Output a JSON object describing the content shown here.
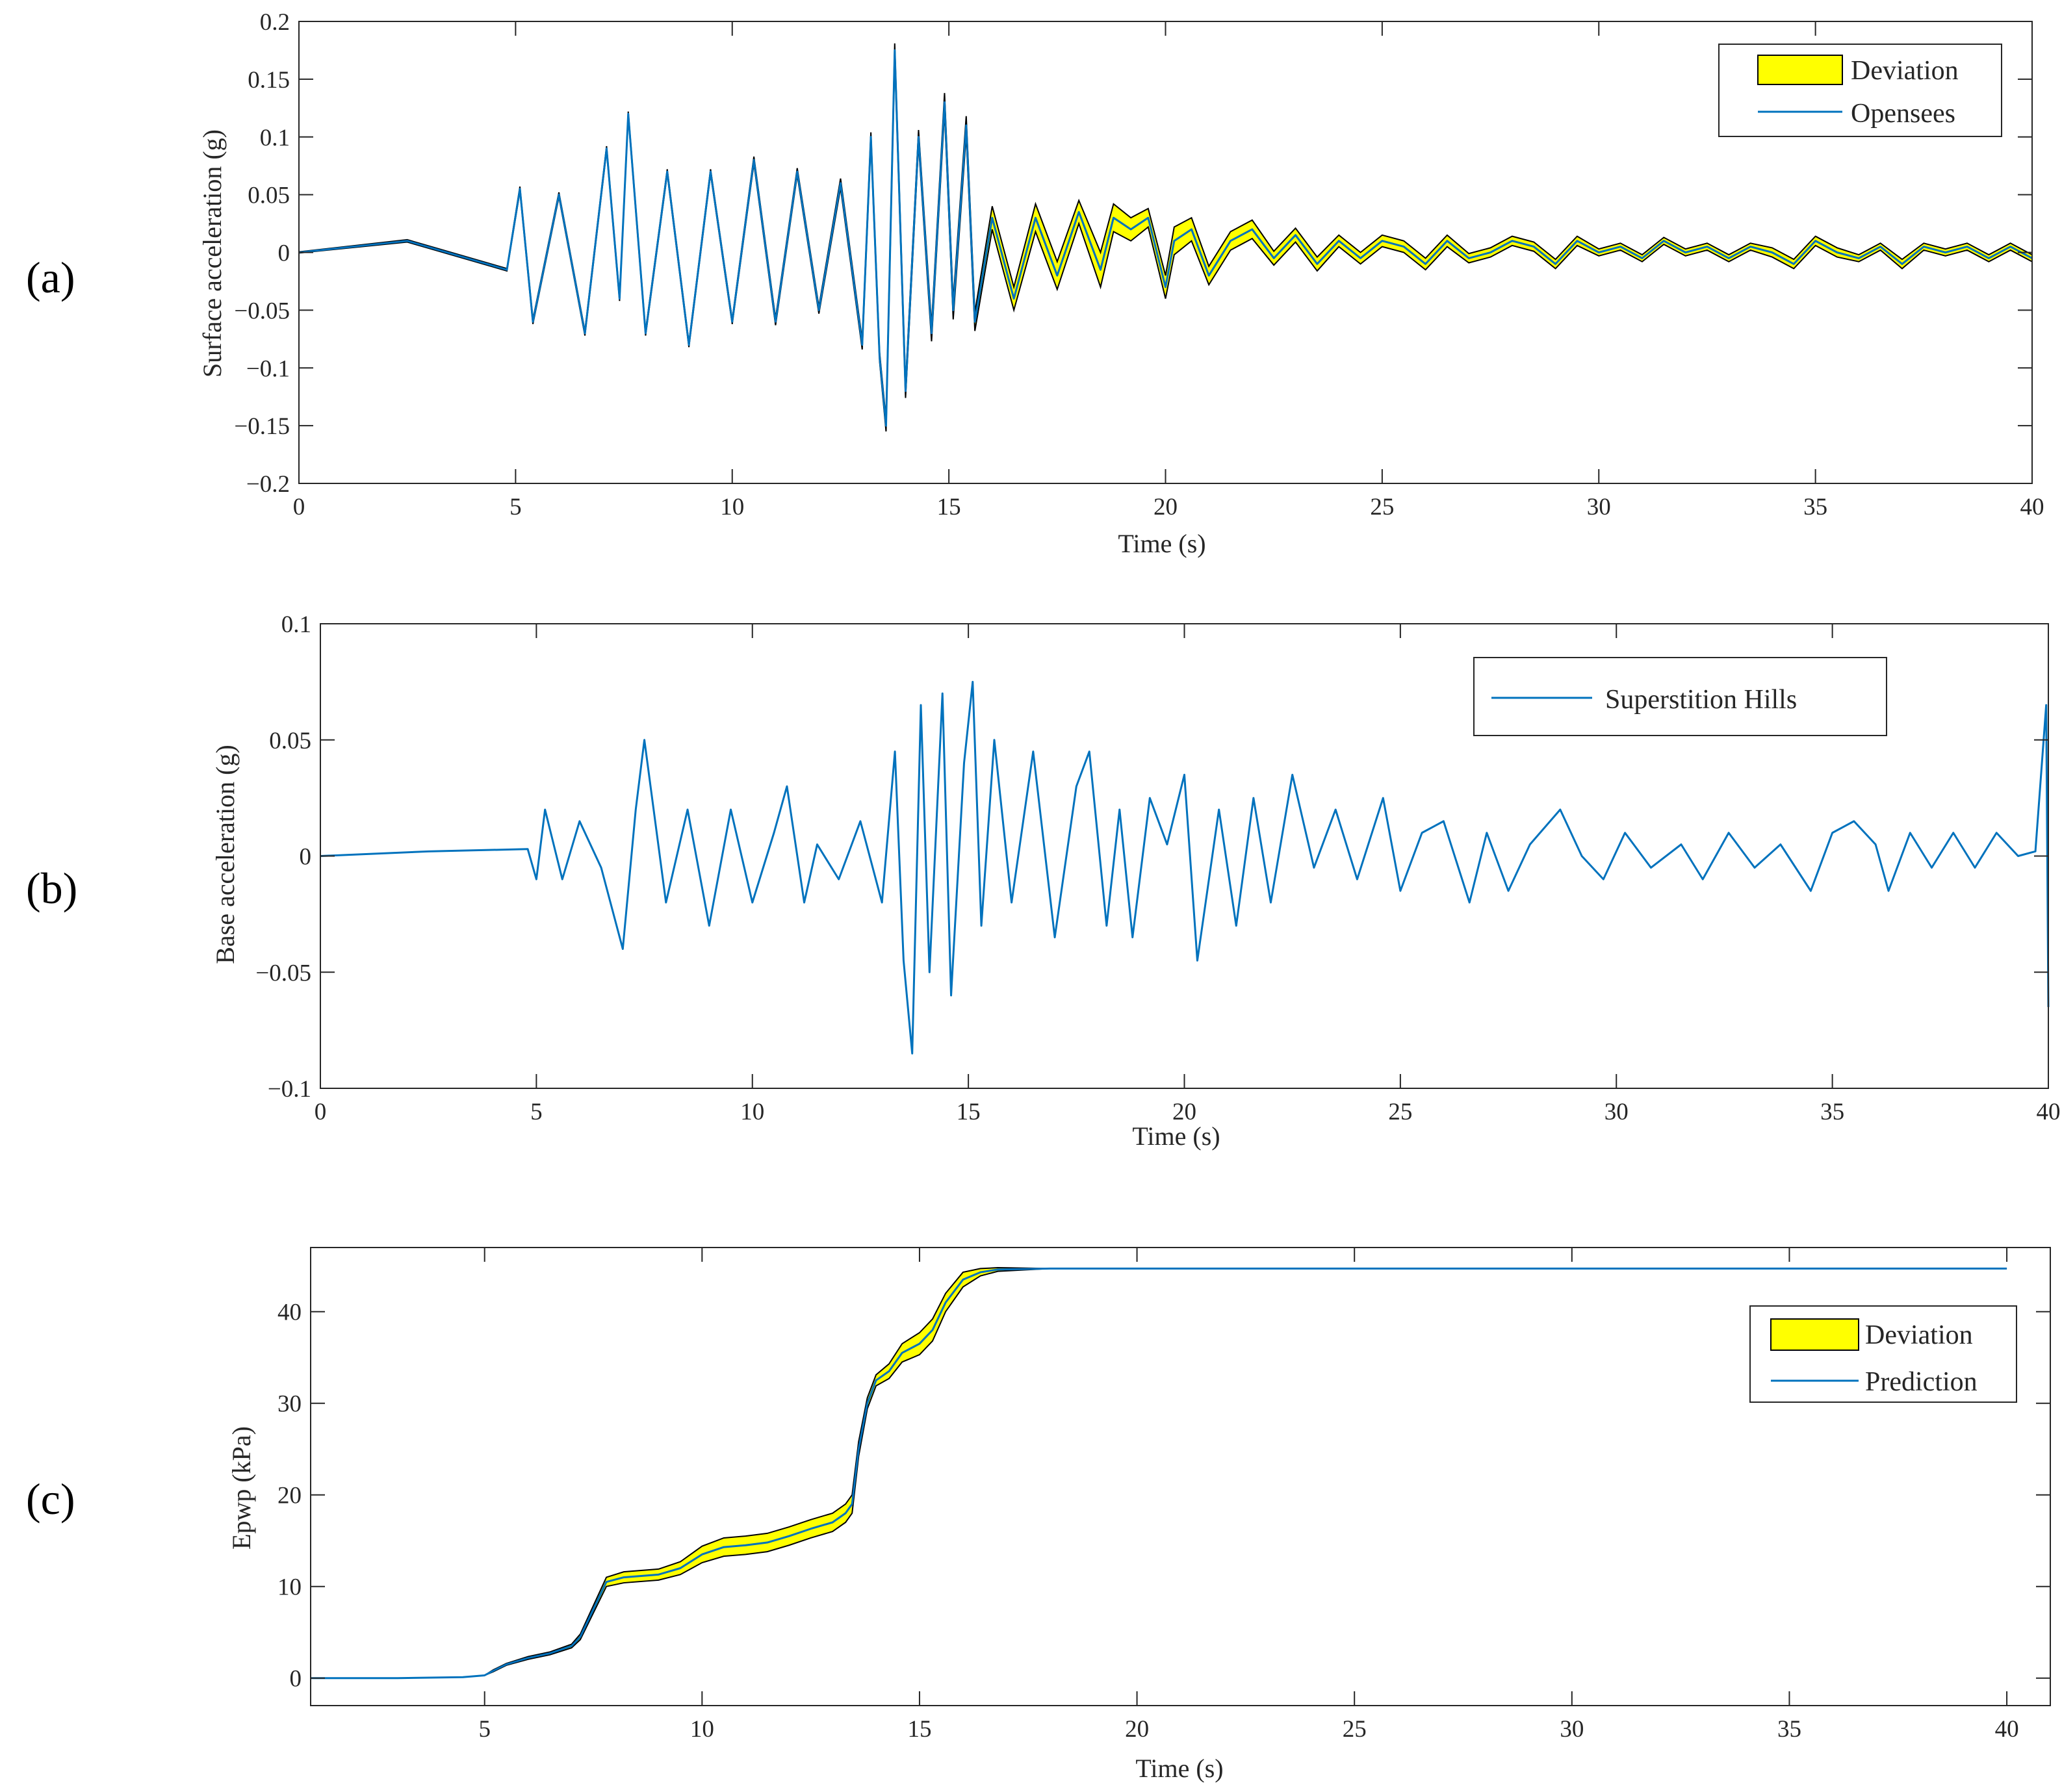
{
  "panels": [
    {
      "tag": "(a)",
      "title": "",
      "xlabel": "Time (s)",
      "ylabel": "Surface acceleration (g)",
      "xlim": [
        0,
        40
      ],
      "ylim": [
        -0.2,
        0.2
      ],
      "xticks": [
        0,
        5,
        10,
        15,
        20,
        25,
        30,
        35,
        40
      ],
      "yticks": [
        -0.2,
        -0.15,
        -0.1,
        -0.05,
        0,
        0.05,
        0.1,
        0.15,
        0.2
      ],
      "xtick_labels": [
        "0",
        "5",
        "10",
        "15",
        "20",
        "25",
        "30",
        "35",
        "40"
      ],
      "ytick_labels": [
        "−0.2",
        "−0.15",
        "−0.1",
        "−0.05",
        "0",
        "0.05",
        "0.1",
        "0.15",
        "0.2"
      ],
      "legend": [
        {
          "label": "Deviation",
          "kind": "patch",
          "color": "#ffff00"
        },
        {
          "label": "Opensees",
          "kind": "line",
          "color": "#0072bd"
        }
      ]
    },
    {
      "tag": "(b)",
      "title": "",
      "xlabel": "Time (s)",
      "ylabel": "Base acceleration (g)",
      "xlim": [
        0,
        40
      ],
      "ylim": [
        -0.1,
        0.1
      ],
      "xticks": [
        0,
        5,
        10,
        15,
        20,
        25,
        30,
        35,
        40
      ],
      "yticks": [
        -0.1,
        -0.05,
        0,
        0.05,
        0.1
      ],
      "xtick_labels": [
        "0",
        "5",
        "10",
        "15",
        "20",
        "25",
        "30",
        "35",
        "40"
      ],
      "ytick_labels": [
        "−0.1",
        "−0.05",
        "0",
        "0.05",
        "0.1"
      ],
      "legend": [
        {
          "label": "Superstition Hills",
          "kind": "line",
          "color": "#0072bd"
        }
      ]
    },
    {
      "tag": "(c)",
      "title": "",
      "xlabel": "Time (s)",
      "ylabel": "Epwp (kPa)",
      "xlim": [
        1,
        41
      ],
      "ylim": [
        -3,
        47
      ],
      "xticks": [
        5,
        10,
        15,
        20,
        25,
        30,
        35,
        40
      ],
      "yticks": [
        0,
        10,
        20,
        30,
        40
      ],
      "xtick_labels": [
        "5",
        "10",
        "15",
        "20",
        "25",
        "30",
        "35",
        "40"
      ],
      "ytick_labels": [
        "0",
        "10",
        "20",
        "30",
        "40"
      ],
      "legend": [
        {
          "label": "Deviation",
          "kind": "patch",
          "color": "#ffff00"
        },
        {
          "label": "Prediction",
          "kind": "line",
          "color": "#0072bd"
        }
      ]
    }
  ],
  "chart_data": [
    {
      "type": "line",
      "title": "",
      "xlabel": "Time (s)",
      "ylabel": "Surface acceleration (g)",
      "xlim": [
        0,
        40
      ],
      "ylim": [
        -0.2,
        0.2
      ],
      "legend_position": "top-right",
      "series": [
        {
          "name": "Opensees",
          "color": "#0072bd",
          "x": [
            0,
            2.5,
            4.8,
            5.1,
            5.4,
            6.0,
            6.6,
            7.1,
            7.4,
            7.6,
            8.0,
            8.5,
            9.0,
            9.5,
            10.0,
            10.5,
            11.0,
            11.5,
            12.0,
            12.5,
            13.0,
            13.2,
            13.4,
            13.55,
            13.75,
            14.0,
            14.3,
            14.6,
            14.9,
            15.1,
            15.4,
            15.6,
            16.0,
            16.5,
            17.0,
            17.5,
            18.0,
            18.5,
            18.8,
            19.2,
            19.6,
            20.0,
            20.2,
            20.6,
            21.0,
            21.5,
            22.0,
            22.5,
            23.0,
            23.5,
            24.0,
            24.5,
            25.0,
            25.5,
            26.0,
            26.5,
            27.0,
            27.5,
            28.0,
            28.5,
            29.0,
            29.5,
            30.0,
            30.5,
            31.0,
            31.5,
            32.0,
            32.5,
            33.0,
            33.5,
            34.0,
            34.5,
            35.0,
            35.5,
            36.0,
            36.5,
            37.0,
            37.5,
            38.0,
            38.5,
            39.0,
            39.5,
            40.0
          ],
          "y": [
            0,
            0.01,
            -0.015,
            0.055,
            -0.06,
            0.05,
            -0.07,
            0.09,
            -0.04,
            0.12,
            -0.07,
            0.07,
            -0.08,
            0.07,
            -0.06,
            0.08,
            -0.06,
            0.07,
            -0.05,
            0.06,
            -0.08,
            0.1,
            -0.09,
            -0.15,
            0.175,
            -0.12,
            0.1,
            -0.07,
            0.13,
            -0.05,
            0.11,
            -0.06,
            0.03,
            -0.04,
            0.03,
            -0.02,
            0.035,
            -0.015,
            0.03,
            0.02,
            0.03,
            -0.03,
            0.01,
            0.02,
            -0.02,
            0.01,
            0.02,
            -0.005,
            0.015,
            -0.01,
            0.01,
            -0.005,
            0.01,
            0.005,
            -0.01,
            0.01,
            -0.005,
            0.0,
            0.01,
            0.005,
            -0.01,
            0.01,
            0.0,
            0.005,
            -0.005,
            0.01,
            0.0,
            0.005,
            -0.005,
            0.005,
            0.0,
            -0.01,
            0.01,
            0.0,
            -0.005,
            0.005,
            -0.01,
            0.005,
            0.0,
            0.005,
            -0.005,
            0.005,
            -0.005
          ]
        }
      ],
      "deviation_half_width": [
        0.0005,
        0.001,
        0.001,
        0.002,
        0.002,
        0.002,
        0.002,
        0.002,
        0.002,
        0.002,
        0.002,
        0.002,
        0.002,
        0.002,
        0.002,
        0.003,
        0.003,
        0.003,
        0.003,
        0.004,
        0.004,
        0.004,
        0.004,
        0.005,
        0.006,
        0.006,
        0.006,
        0.007,
        0.008,
        0.008,
        0.008,
        0.008,
        0.01,
        0.01,
        0.012,
        0.012,
        0.01,
        0.015,
        0.012,
        0.01,
        0.008,
        0.01,
        0.012,
        0.01,
        0.008,
        0.008,
        0.008,
        0.006,
        0.006,
        0.006,
        0.005,
        0.005,
        0.005,
        0.005,
        0.005,
        0.005,
        0.004,
        0.004,
        0.004,
        0.004,
        0.004,
        0.004,
        0.003,
        0.003,
        0.003,
        0.003,
        0.003,
        0.003,
        0.003,
        0.003,
        0.004,
        0.004,
        0.004,
        0.004,
        0.003,
        0.003,
        0.004,
        0.003,
        0.003,
        0.003,
        0.003,
        0.003,
        0.003
      ]
    },
    {
      "type": "line",
      "title": "",
      "xlabel": "Time (s)",
      "ylabel": "Base acceleration (g)",
      "xlim": [
        0,
        40
      ],
      "ylim": [
        -0.1,
        0.1
      ],
      "legend_position": "top-right",
      "series": [
        {
          "name": "Superstition Hills",
          "color": "#0072bd",
          "x": [
            0,
            2.5,
            4.8,
            5.0,
            5.2,
            5.6,
            6.0,
            6.5,
            7.0,
            7.3,
            7.5,
            8.0,
            8.5,
            9.0,
            9.5,
            10.0,
            10.5,
            10.8,
            11.2,
            11.5,
            12.0,
            12.5,
            13.0,
            13.3,
            13.5,
            13.7,
            13.9,
            14.1,
            14.4,
            14.6,
            14.9,
            15.1,
            15.3,
            15.6,
            16.0,
            16.5,
            17.0,
            17.5,
            17.8,
            18.2,
            18.5,
            18.8,
            19.2,
            19.6,
            20.0,
            20.3,
            20.8,
            21.2,
            21.6,
            22.0,
            22.5,
            23.0,
            23.5,
            24.0,
            24.6,
            25.0,
            25.5,
            26.0,
            26.6,
            27.0,
            27.5,
            28.0,
            28.7,
            29.2,
            29.7,
            30.2,
            30.8,
            31.5,
            32.0,
            32.6,
            33.2,
            33.8,
            34.5,
            35.0,
            35.5,
            36.0,
            36.3,
            36.8,
            37.3,
            37.8,
            38.3,
            38.8,
            39.3,
            39.7,
            39.95,
            40.0
          ],
          "y": [
            0,
            0.002,
            0.003,
            -0.01,
            0.02,
            -0.01,
            0.015,
            -0.005,
            -0.04,
            0.02,
            0.05,
            -0.02,
            0.02,
            -0.03,
            0.02,
            -0.02,
            0.01,
            0.03,
            -0.02,
            0.005,
            -0.01,
            0.015,
            -0.02,
            0.045,
            -0.045,
            -0.085,
            0.065,
            -0.05,
            0.07,
            -0.06,
            0.04,
            0.075,
            -0.03,
            0.05,
            -0.02,
            0.045,
            -0.035,
            0.03,
            0.045,
            -0.03,
            0.02,
            -0.035,
            0.025,
            0.005,
            0.035,
            -0.045,
            0.02,
            -0.03,
            0.025,
            -0.02,
            0.035,
            -0.005,
            0.02,
            -0.01,
            0.025,
            -0.015,
            0.01,
            0.015,
            -0.02,
            0.01,
            -0.015,
            0.005,
            0.02,
            0.0,
            -0.01,
            0.01,
            -0.005,
            0.005,
            -0.01,
            0.01,
            -0.005,
            0.005,
            -0.015,
            0.01,
            0.015,
            0.005,
            -0.015,
            0.01,
            -0.005,
            0.01,
            -0.005,
            0.01,
            0.0,
            0.002,
            0.065,
            -0.065
          ]
        }
      ]
    },
    {
      "type": "area",
      "title": "",
      "xlabel": "Time (s)",
      "ylabel": "Epwp (kPa)",
      "xlim": [
        1,
        41
      ],
      "ylim": [
        -3,
        47
      ],
      "legend_position": "right",
      "series": [
        {
          "name": "Prediction",
          "color": "#0072bd",
          "x": [
            1,
            3,
            4.5,
            5.0,
            5.2,
            5.5,
            6.0,
            6.5,
            7.0,
            7.2,
            7.5,
            7.8,
            8.2,
            9.0,
            9.5,
            10.0,
            10.5,
            11.0,
            11.5,
            12.0,
            12.5,
            13.0,
            13.3,
            13.45,
            13.6,
            13.8,
            14.0,
            14.3,
            14.6,
            15.0,
            15.3,
            15.6,
            16.0,
            16.4,
            16.8,
            18,
            25,
            30,
            35,
            40
          ],
          "y": [
            0,
            0,
            0.1,
            0.3,
            0.8,
            1.5,
            2.2,
            2.7,
            3.5,
            4.5,
            7.5,
            10.5,
            11.0,
            11.3,
            12.0,
            13.5,
            14.3,
            14.5,
            14.8,
            15.5,
            16.3,
            17.0,
            18.0,
            19.0,
            25.0,
            30.0,
            32.5,
            33.5,
            35.5,
            36.5,
            38.0,
            41.0,
            43.5,
            44.3,
            44.6,
            44.7,
            44.7,
            44.7,
            44.7,
            44.7
          ]
        }
      ],
      "deviation_half_width": [
        0,
        0,
        0,
        0,
        0.1,
        0.1,
        0.15,
        0.15,
        0.2,
        0.3,
        0.4,
        0.5,
        0.6,
        0.6,
        0.7,
        0.9,
        1.0,
        1.0,
        1.0,
        1.0,
        1.0,
        1.0,
        1.0,
        1.0,
        0.8,
        0.6,
        0.6,
        0.8,
        1.0,
        1.2,
        1.2,
        1.0,
        0.8,
        0.4,
        0.2,
        0,
        0,
        0,
        0,
        0
      ]
    }
  ]
}
